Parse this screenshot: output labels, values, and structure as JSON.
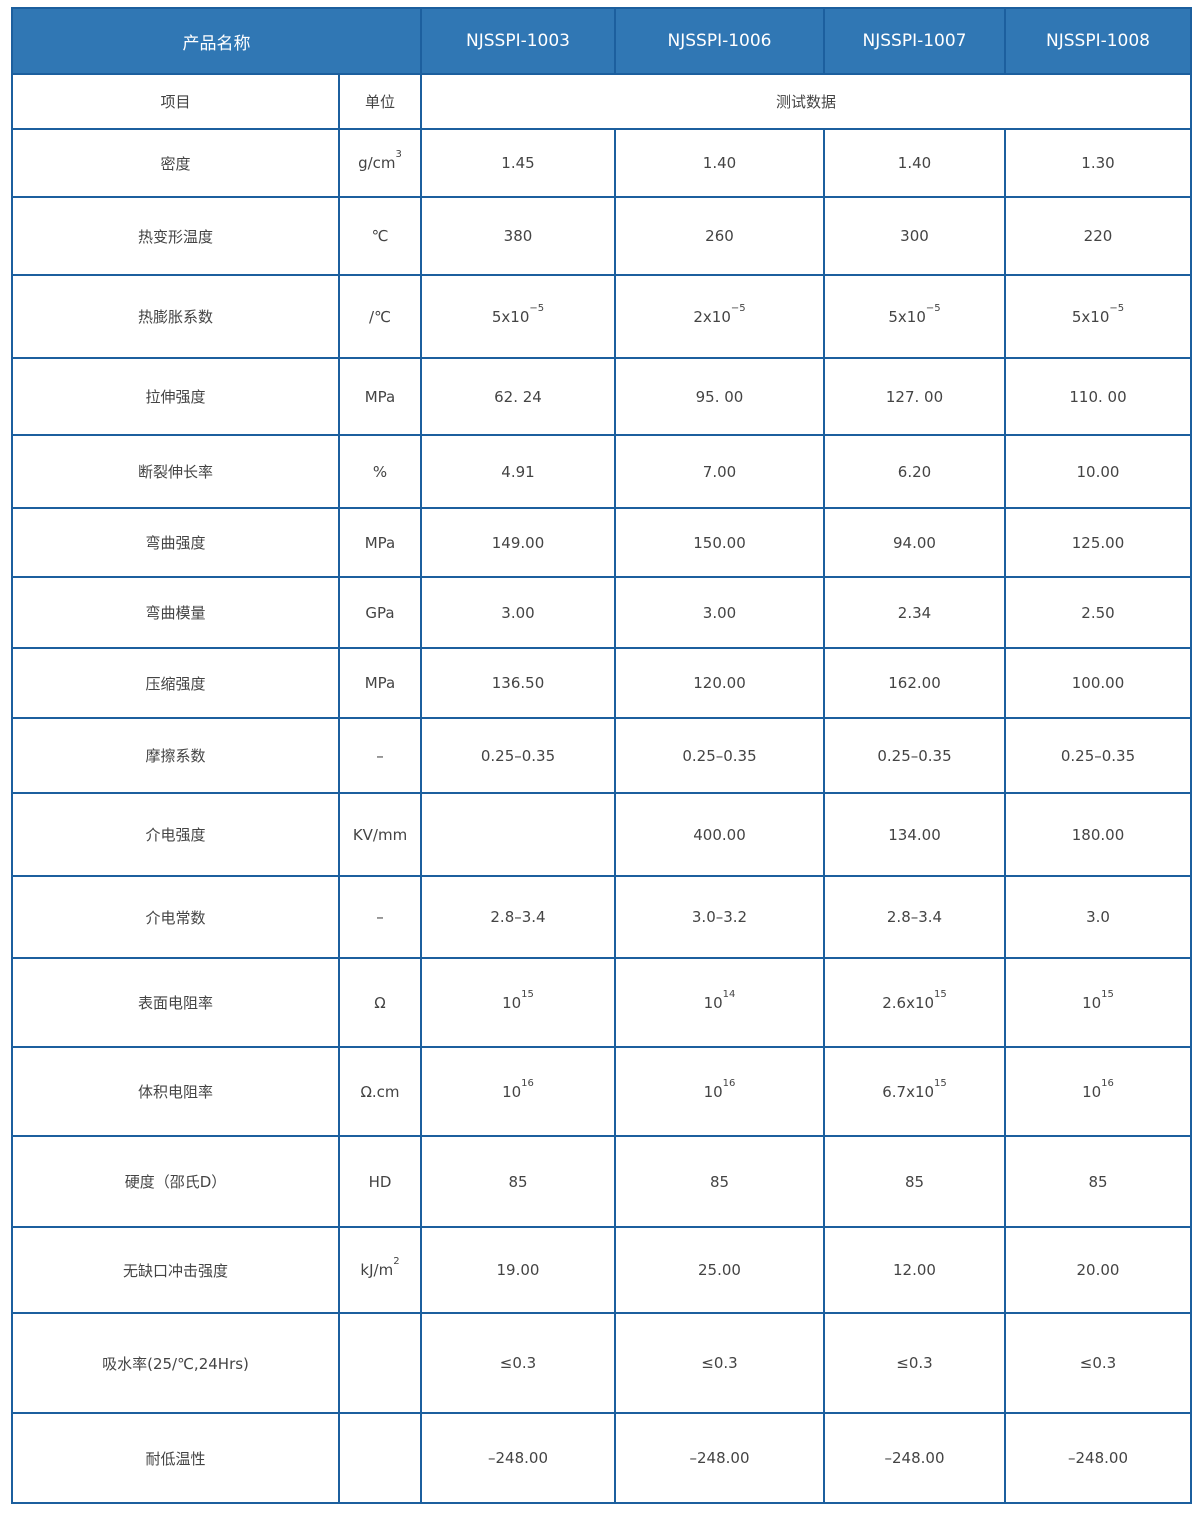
{
  "header": {
    "product_name_label": "产品名称",
    "models": [
      "NJSSPI-1003",
      "NJSSPI-1006",
      "NJSSPI-1007",
      "NJSSPI-1008"
    ]
  },
  "subheader": {
    "item_label": "项目",
    "unit_label": "单位",
    "data_label": "测试数据"
  },
  "rows": [
    {
      "name": "密度",
      "unit": {
        "t": "g/cm",
        "sup": "3"
      },
      "values": [
        {
          "t": "1.45"
        },
        {
          "t": "1.40"
        },
        {
          "t": "1.40"
        },
        {
          "t": "1.30"
        }
      ]
    },
    {
      "name": "热变形温度",
      "unit": {
        "t": "℃"
      },
      "values": [
        {
          "t": "380"
        },
        {
          "t": "260"
        },
        {
          "t": "300"
        },
        {
          "t": "220"
        }
      ]
    },
    {
      "name": "热膨胀系数",
      "unit": {
        "t": "/℃"
      },
      "values": [
        {
          "t": "5x10",
          "sup": "−5"
        },
        {
          "t": "2x10",
          "sup": "−5"
        },
        {
          "t": "5x10",
          "sup": "−5"
        },
        {
          "t": "5x10",
          "sup": "−5"
        }
      ]
    },
    {
      "name": "拉伸强度",
      "unit": {
        "t": "MPa"
      },
      "values": [
        {
          "t": "62. 24"
        },
        {
          "t": "95. 00"
        },
        {
          "t": "127. 00"
        },
        {
          "t": "110. 00"
        }
      ]
    },
    {
      "name": "断裂伸长率",
      "unit": {
        "t": "%"
      },
      "values": [
        {
          "t": "4.91"
        },
        {
          "t": "7.00"
        },
        {
          "t": "6.20"
        },
        {
          "t": "10.00"
        }
      ]
    },
    {
      "name": "弯曲强度",
      "unit": {
        "t": "MPa"
      },
      "values": [
        {
          "t": "149.00"
        },
        {
          "t": "150.00"
        },
        {
          "t": "94.00"
        },
        {
          "t": "125.00"
        }
      ]
    },
    {
      "name": "弯曲模量",
      "unit": {
        "t": "GPa"
      },
      "values": [
        {
          "t": "3.00"
        },
        {
          "t": "3.00"
        },
        {
          "t": "2.34"
        },
        {
          "t": "2.50"
        }
      ]
    },
    {
      "name": "压缩强度",
      "unit": {
        "t": "MPa"
      },
      "values": [
        {
          "t": "136.50"
        },
        {
          "t": "120.00"
        },
        {
          "t": "162.00"
        },
        {
          "t": "100.00"
        }
      ]
    },
    {
      "name": "摩擦系数",
      "unit": {
        "t": "–"
      },
      "values": [
        {
          "t": "0.25–0.35"
        },
        {
          "t": "0.25–0.35"
        },
        {
          "t": "0.25–0.35"
        },
        {
          "t": "0.25–0.35"
        }
      ]
    },
    {
      "name": "介电强度",
      "unit": {
        "t": "KV/mm"
      },
      "values": [
        {
          "t": ""
        },
        {
          "t": "400.00"
        },
        {
          "t": "134.00"
        },
        {
          "t": "180.00"
        }
      ]
    },
    {
      "name": "介电常数",
      "unit": {
        "t": "–"
      },
      "values": [
        {
          "t": "2.8–3.4"
        },
        {
          "t": "3.0–3.2"
        },
        {
          "t": "2.8–3.4"
        },
        {
          "t": "3.0"
        }
      ]
    },
    {
      "name": "表面电阻率",
      "unit": {
        "t": "Ω"
      },
      "values": [
        {
          "t": "10",
          "sup": "15"
        },
        {
          "t": "10",
          "sup": "14"
        },
        {
          "t": "2.6x10",
          "sup": "15"
        },
        {
          "t": "10",
          "sup": "15"
        }
      ]
    },
    {
      "name": "体积电阻率",
      "unit": {
        "t": "Ω.cm"
      },
      "values": [
        {
          "t": "10",
          "sup": "16"
        },
        {
          "t": "10",
          "sup": "16"
        },
        {
          "t": "6.7x10",
          "sup": "15"
        },
        {
          "t": "10",
          "sup": "16"
        }
      ]
    },
    {
      "name": "硬度（邵氏D）",
      "unit": {
        "t": "HD"
      },
      "values": [
        {
          "t": "85"
        },
        {
          "t": "85"
        },
        {
          "t": "85"
        },
        {
          "t": "85"
        }
      ]
    },
    {
      "name": "无缺口冲击强度",
      "unit": {
        "t": "kJ/m",
        "sup": "2"
      },
      "values": [
        {
          "t": "19.00"
        },
        {
          "t": "25.00"
        },
        {
          "t": "12.00"
        },
        {
          "t": "20.00"
        }
      ]
    },
    {
      "name": "吸水率(25/℃,24Hrs)",
      "unit": {
        "t": ""
      },
      "values": [
        {
          "t": "≤0.3"
        },
        {
          "t": "≤0.3"
        },
        {
          "t": "≤0.3"
        },
        {
          "t": "≤0.3"
        }
      ]
    },
    {
      "name": "耐低温性",
      "unit": {
        "t": ""
      },
      "values": [
        {
          "t": "–248.00"
        },
        {
          "t": "–248.00"
        },
        {
          "t": "–248.00"
        },
        {
          "t": "–248.00"
        }
      ]
    }
  ]
}
